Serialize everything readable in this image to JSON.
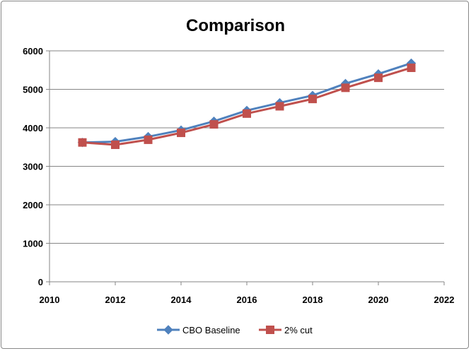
{
  "chart_data": {
    "type": "scatter",
    "title": "Comparison",
    "xlabel": "",
    "ylabel": "",
    "xlim": [
      2010,
      2022
    ],
    "ylim": [
      0,
      6000
    ],
    "xticks": [
      2010,
      2012,
      2014,
      2016,
      2018,
      2020,
      2022
    ],
    "yticks": [
      0,
      1000,
      2000,
      3000,
      4000,
      5000,
      6000
    ],
    "grid": {
      "horizontal": true,
      "vertical": false
    },
    "legend_position": "bottom",
    "series": [
      {
        "name": "CBO Baseline",
        "color": "#4F81BD",
        "marker": "diamond",
        "x": [
          2011,
          2012,
          2013,
          2014,
          2015,
          2016,
          2017,
          2018,
          2019,
          2020,
          2021
        ],
        "y": [
          3620,
          3640,
          3770,
          3940,
          4170,
          4450,
          4650,
          4840,
          5150,
          5400,
          5680
        ]
      },
      {
        "name": "2% cut",
        "color": "#C0504D",
        "marker": "square",
        "x": [
          2011,
          2012,
          2013,
          2014,
          2015,
          2016,
          2017,
          2018,
          2019,
          2020,
          2021
        ],
        "y": [
          3620,
          3560,
          3690,
          3870,
          4090,
          4370,
          4560,
          4750,
          5040,
          5300,
          5560
        ]
      }
    ]
  }
}
